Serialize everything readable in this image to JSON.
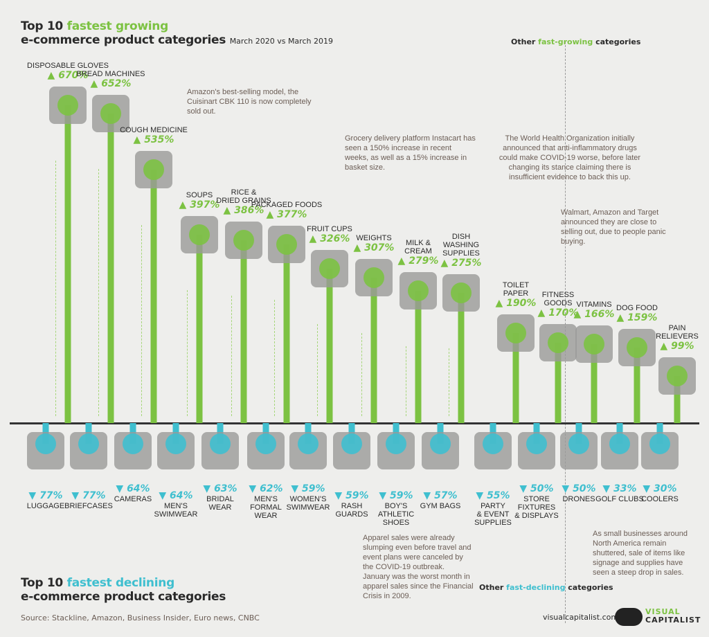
{
  "title_growing": {
    "prefix": "Top 10 ",
    "highlight": "fastest growing",
    "line2": "e-commerce product categories",
    "subtitle": "March 2020 vs March 2019"
  },
  "title_declining": {
    "prefix": "Top 10 ",
    "highlight": "fastest declining",
    "line2": "e-commerce product categories"
  },
  "other_growing": {
    "prefix": "Other ",
    "highlight": "fast-growing",
    "suffix": " categories"
  },
  "other_declining": {
    "prefix": "Other ",
    "highlight": "fast-declining",
    "suffix": " categories"
  },
  "source": "Source: Stackline, Amazon, Business Insider, Euro news, CNBC",
  "footer": {
    "url": "visualcapitalist.com",
    "logo_top": "VISUAL",
    "logo_bottom": "CAPITALIST"
  },
  "notes": {
    "bread": "Amazon's best-selling model, the Cuisinart CBK 110 is now completely sold out.",
    "instacart": "Grocery delivery platform Instacart has seen a 150% increase in recent weeks, as well as a 15% increase in basket size.",
    "who": "The World Health Organization initially announced that anti-inflammatory drugs could make COVID-19 worse, before later changing its stance claiming there is insufficient evidence to back this up.",
    "toilet": "Walmart, Amazon and Target announced they are close to selling out, due to people panic buying.",
    "apparel": "Apparel sales were already slumping even before travel and event plans were canceled by the COVID-19 outbreak. January was the worst month in apparel sales since the Financial Crisis in 2009.",
    "store": "As small businesses around North America remain shuttered, sale of items like signage and supplies have seen a steep drop in sales."
  },
  "colors": {
    "growth": "#7cc242",
    "decline": "#3fbfcf",
    "baseline": "#333333"
  },
  "chart_data": {
    "type": "bar",
    "growing": {
      "categories": [
        "Disposable gloves",
        "Bread machines",
        "Cough medicine",
        "Soups",
        "Rice & dried grains",
        "Packaged foods",
        "Fruit cups",
        "Weights",
        "Milk & cream",
        "Dish washing supplies",
        "Toilet paper",
        "Fitness goods",
        "Vitamins",
        "Dog food",
        "Pain relievers"
      ],
      "values": [
        670,
        652,
        535,
        397,
        386,
        377,
        326,
        307,
        279,
        275,
        190,
        170,
        166,
        159,
        99
      ],
      "labels": [
        "DISPOSABLE GLOVES",
        "BREAD MACHINES",
        "COUGH MEDICINE",
        "SOUPS",
        "RICE &\nDRIED GRAINS",
        "PACKAGED FOODS",
        "FRUIT CUPS",
        "WEIGHTS",
        "MILK &\nCREAM",
        "DISH\nWASHING\nSUPPLIES",
        "TOILET\nPAPER",
        "FITNESS\nGOODS",
        "VITAMINS",
        "DOG FOOD",
        "PAIN\nRELIEVERS"
      ],
      "value_labels": [
        "670%",
        "652%",
        "535%",
        "397%",
        "386%",
        "377%",
        "326%",
        "307%",
        "279%",
        "275%",
        "190%",
        "170%",
        "166%",
        "159%",
        "99%"
      ]
    },
    "declining": {
      "categories": [
        "Luggage",
        "Briefcases",
        "Cameras",
        "Men's swimwear",
        "Bridal wear",
        "Men's formal wear",
        "Women's swimwear",
        "Rash guards",
        "Boy's athletic shoes",
        "Gym bags",
        "Party & event supplies",
        "Store fixtures & displays",
        "Drones",
        "Golf clubs",
        "Coolers"
      ],
      "values": [
        -77,
        -77,
        -64,
        -64,
        -63,
        -62,
        -59,
        -59,
        -59,
        -57,
        -55,
        -50,
        -50,
        -33,
        -30
      ],
      "labels": [
        "LUGGAGE",
        "BRIEFCASES",
        "CAMERAS",
        "MEN'S\nSWIMWEAR",
        "BRIDAL\nWEAR",
        "MEN'S\nFORMAL\nWEAR",
        "WOMEN'S\nSWIMWEAR",
        "RASH\nGUARDS",
        "BOY'S\nATHLETIC\nSHOES",
        "GYM BAGS",
        "PARTY\n& EVENT\nSUPPLIES",
        "STORE\nFIXTURES\n& DISPLAYS",
        "DRONES",
        "GOLF CLUBS",
        "COOLERS"
      ],
      "value_labels": [
        "77%",
        "77%",
        "64%",
        "64%",
        "63%",
        "62%",
        "59%",
        "59%",
        "59%",
        "57%",
        "55%",
        "50%",
        "50%",
        "33%",
        "30%"
      ]
    }
  }
}
